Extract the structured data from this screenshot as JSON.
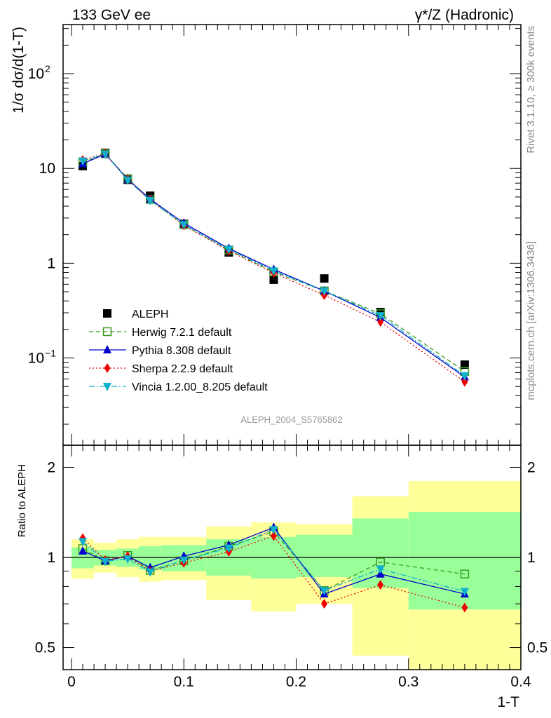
{
  "header": {
    "left_title": "133 GeV ee",
    "right_title": "γ*/Z (Hadronic)"
  },
  "side_labels": {
    "rivet": "Rivet 3.1.10, ≥ 300k events",
    "mcplots": "mcplots.cern.ch [arXiv:1306.3436]"
  },
  "analysis_label": "ALEPH_2004_S5765862",
  "chart_data": [
    {
      "type": "line",
      "panel": "main",
      "ylabel": "1/σ dσ/d(1-T)",
      "yscale": "log",
      "ylim": [
        0.012,
        330
      ],
      "xlim": [
        -0.0075,
        0.4
      ],
      "yticks": [
        {
          "value": 0.1,
          "base": "10",
          "exp": "−1"
        },
        {
          "value": 1,
          "label": "1"
        },
        {
          "value": 10,
          "label": "10"
        },
        {
          "value": 100,
          "base": "10",
          "exp": "2"
        }
      ],
      "legend_position": "lower-left",
      "x": [
        0.01,
        0.03,
        0.05,
        0.07,
        0.1,
        0.14,
        0.18,
        0.225,
        0.275,
        0.35
      ],
      "series": [
        {
          "name": "ALEPH",
          "color": "#000000",
          "marker": "square",
          "line": "none",
          "values": [
            10.6,
            14.6,
            7.6,
            5.15,
            2.6,
            1.3,
            0.67,
            0.69,
            0.305,
            0.085
          ]
        },
        {
          "name": "Herwig 7.2.1 default",
          "color": "#3a9a1f",
          "marker": "open-square",
          "line": "dashed",
          "values": [
            11.5,
            14.3,
            7.8,
            4.7,
            2.55,
            1.38,
            0.81,
            0.51,
            0.293,
            0.072
          ]
        },
        {
          "name": "Pythia 8.308 default",
          "color": "#0000cc",
          "marker": "triangle-up",
          "line": "solid",
          "values": [
            11.2,
            14.2,
            7.7,
            4.75,
            2.65,
            1.43,
            0.86,
            0.51,
            0.267,
            0.063
          ]
        },
        {
          "name": "Sherpa 2.2.9 default",
          "color": "#ee0000",
          "marker": "diamond",
          "line": "dotted",
          "values": [
            12.3,
            14.3,
            7.65,
            4.65,
            2.5,
            1.35,
            0.79,
            0.46,
            0.24,
            0.056
          ]
        },
        {
          "name": "Vincia 1.2.00_8.205 default",
          "color": "#10b0cc",
          "marker": "triangle-down",
          "line": "dashdot",
          "values": [
            12.0,
            14.2,
            7.55,
            4.6,
            2.55,
            1.4,
            0.83,
            0.51,
            0.28,
            0.065
          ]
        }
      ]
    },
    {
      "type": "line",
      "panel": "ratio",
      "xlabel": "1-T",
      "ylabel": "Ratio to ALEPH",
      "yscale": "log",
      "ylim": [
        0.422,
        2.37
      ],
      "xlim": [
        -0.0075,
        0.4
      ],
      "yticks": [
        0.5,
        1,
        2
      ],
      "xticks": [
        0,
        0.1,
        0.2,
        0.3,
        0.4
      ],
      "reference_line": 1,
      "bands": {
        "edges": [
          0.0,
          0.02,
          0.04,
          0.06,
          0.08,
          0.12,
          0.16,
          0.2,
          0.25,
          0.3,
          0.4
        ],
        "outer": [
          [
            0.85,
            1.15
          ],
          [
            0.89,
            1.12
          ],
          [
            0.86,
            1.15
          ],
          [
            0.83,
            1.17
          ],
          [
            0.84,
            1.17
          ],
          [
            0.72,
            1.27
          ],
          [
            0.66,
            1.31
          ],
          [
            0.7,
            1.29
          ],
          [
            0.47,
            1.6
          ],
          [
            0.35,
            1.8
          ]
        ],
        "inner": [
          [
            0.92,
            1.08
          ],
          [
            0.94,
            1.06
          ],
          [
            0.93,
            1.07
          ],
          [
            0.91,
            1.09
          ],
          [
            0.9,
            1.1
          ],
          [
            0.87,
            1.15
          ],
          [
            0.85,
            1.17
          ],
          [
            0.86,
            1.19
          ],
          [
            0.79,
            1.35
          ],
          [
            0.67,
            1.42
          ]
        ],
        "outer_color": "#ffff99",
        "inner_color": "#99ff99"
      },
      "x": [
        0.01,
        0.03,
        0.05,
        0.07,
        0.1,
        0.14,
        0.18,
        0.225,
        0.275,
        0.35
      ],
      "series": [
        {
          "name": "Herwig 7.2.1 default",
          "color": "#3a9a1f",
          "marker": "open-square",
          "line": "dashed",
          "values": [
            1.07,
            0.975,
            1.015,
            0.905,
            0.975,
            1.09,
            1.22,
            0.775,
            0.965,
            0.88
          ]
        },
        {
          "name": "Pythia 8.308 default",
          "color": "#0000cc",
          "marker": "triangle-up",
          "line": "solid",
          "values": [
            1.05,
            0.975,
            1.01,
            0.925,
            1.01,
            1.1,
            1.26,
            0.755,
            0.88,
            0.755
          ]
        },
        {
          "name": "Sherpa 2.2.9 default",
          "color": "#ee0000",
          "marker": "diamond",
          "line": "dotted",
          "values": [
            1.16,
            0.98,
            1.01,
            0.9,
            0.96,
            1.045,
            1.18,
            0.7,
            0.81,
            0.68
          ]
        },
        {
          "name": "Vincia 1.2.00_8.205 default",
          "color": "#10b0cc",
          "marker": "triangle-down",
          "line": "dashdot",
          "values": [
            1.13,
            0.97,
            0.99,
            0.895,
            0.98,
            1.075,
            1.24,
            0.775,
            0.915,
            0.77
          ]
        }
      ]
    }
  ]
}
